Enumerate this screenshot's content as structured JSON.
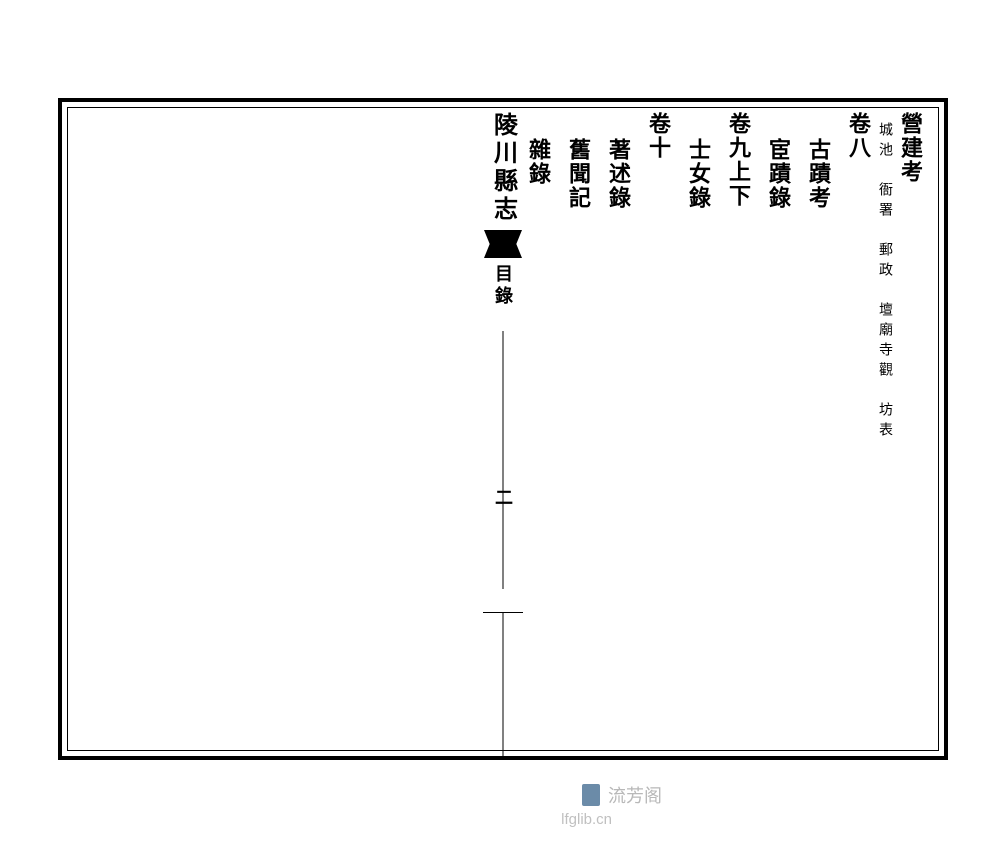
{
  "spine": {
    "title": "陵川縣志",
    "section": "目錄",
    "page_number": "二"
  },
  "columns": [
    {
      "main": "營建考",
      "indent": false,
      "small": "城池　衙署　郵政　壇廟寺觀　坊表"
    },
    {
      "main": "卷八",
      "indent": false,
      "small": ""
    },
    {
      "main": "古蹟考",
      "indent": true,
      "small": ""
    },
    {
      "main": "宦蹟錄",
      "indent": true,
      "small": ""
    },
    {
      "main": "卷九上下",
      "indent": false,
      "small": ""
    },
    {
      "main": "士女錄",
      "indent": true,
      "small": ""
    },
    {
      "main": "卷十",
      "indent": false,
      "small": ""
    },
    {
      "main": "著述錄",
      "indent": true,
      "small": ""
    },
    {
      "main": "舊聞記",
      "indent": true,
      "small": ""
    },
    {
      "main": "雜錄",
      "indent": true,
      "small": ""
    }
  ],
  "watermark": {
    "text": "流芳阁",
    "url": "lfglib.cn"
  },
  "colors": {
    "border": "#000000",
    "text": "#000000",
    "background": "#ffffff",
    "watermark": "#b8b8b8",
    "watermark_icon": "#6b8ba8"
  }
}
